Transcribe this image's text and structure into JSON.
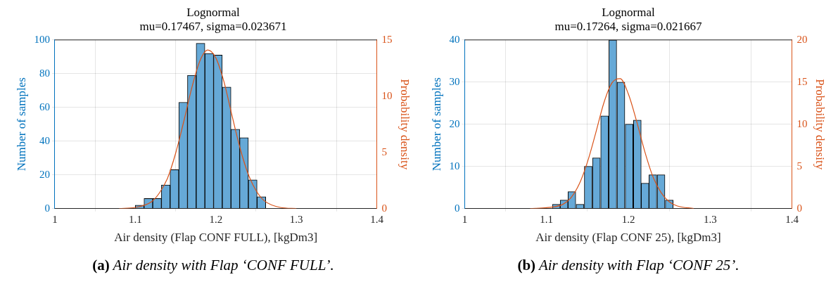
{
  "chart_data": [
    {
      "type": "histogram",
      "title": "Lognormal",
      "subtitle": "mu=0.17467, sigma=0.023671",
      "xlabel": "Air density (Flap CONF FULL), [kgDm3]",
      "ylabel": "Number of samples",
      "y2label": "Probability density",
      "annotations": [
        "(a) Air density with Flap ‘CONF FULL’."
      ],
      "bins": [
        1.1,
        1.1108,
        1.1216,
        1.1324,
        1.1432,
        1.154,
        1.1648,
        1.1756,
        1.1864,
        1.1972,
        1.208,
        1.2188,
        1.2296,
        1.2404,
        1.2512,
        1.262
      ],
      "values": [
        2,
        6,
        6,
        14,
        23,
        63,
        79,
        98,
        92,
        91,
        72,
        47,
        42,
        17,
        7
      ],
      "color": "#66a9d7",
      "series": [
        {
          "type": "line",
          "axis": "y2",
          "color": "#d95319",
          "x": [
            1.08,
            1.1,
            1.12,
            1.13,
            1.14,
            1.15,
            1.16,
            1.17,
            1.18,
            1.19,
            1.2,
            1.21,
            1.22,
            1.23,
            1.24,
            1.25,
            1.26,
            1.28,
            1.3
          ],
          "values": [
            0,
            0.1,
            0.6,
            1.4,
            2.7,
            4.9,
            7.7,
            10.7,
            13.1,
            14.1,
            13.4,
            11.3,
            8.3,
            5.4,
            3.1,
            1.6,
            0.7,
            0.1,
            0
          ]
        }
      ],
      "xlim": [
        1,
        1.4
      ],
      "xticks": [
        1,
        1.1,
        1.2,
        1.3,
        1.4
      ],
      "ylim": [
        0,
        100
      ],
      "yticks": [
        0,
        20,
        40,
        60,
        80,
        100
      ],
      "y2lim": [
        0,
        15
      ],
      "y2ticks": [
        0,
        5,
        10,
        15
      ],
      "grid": true
    },
    {
      "type": "histogram",
      "title": "Lognormal",
      "subtitle": "mu=0.17264, sigma=0.021667",
      "xlabel": "Air density (Flap CONF 25), [kgDm3]",
      "ylabel": "Number of samples",
      "y2label": "Probability density",
      "annotations": [
        "(b) Air density with Flap ‘CONF 25’."
      ],
      "bins": [
        1.107,
        1.117,
        1.126,
        1.136,
        1.146,
        1.156,
        1.166,
        1.176,
        1.186,
        1.196,
        1.206,
        1.216,
        1.225,
        1.235,
        1.245,
        1.255
      ],
      "values": [
        1,
        2,
        4,
        1,
        10,
        12,
        22,
        40,
        30,
        20,
        21,
        6,
        8,
        8,
        2
      ],
      "color": "#66a9d7",
      "series": [
        {
          "type": "line",
          "axis": "y2",
          "color": "#d95319",
          "x": [
            1.08,
            1.1,
            1.12,
            1.13,
            1.14,
            1.15,
            1.16,
            1.17,
            1.18,
            1.19,
            1.2,
            1.21,
            1.22,
            1.23,
            1.24,
            1.25,
            1.26,
            1.28
          ],
          "values": [
            0,
            0.1,
            0.5,
            1.3,
            2.9,
            5.5,
            8.9,
            12.5,
            14.9,
            15.4,
            13.6,
            10.4,
            6.8,
            3.8,
            1.9,
            0.8,
            0.3,
            0
          ]
        }
      ],
      "xlim": [
        1,
        1.4
      ],
      "xticks": [
        1,
        1.1,
        1.2,
        1.3,
        1.4
      ],
      "ylim": [
        0,
        40
      ],
      "yticks": [
        0,
        10,
        20,
        30,
        40
      ],
      "y2lim": [
        0,
        20
      ],
      "y2ticks": [
        0,
        5,
        10,
        15,
        20
      ],
      "grid": true
    }
  ]
}
